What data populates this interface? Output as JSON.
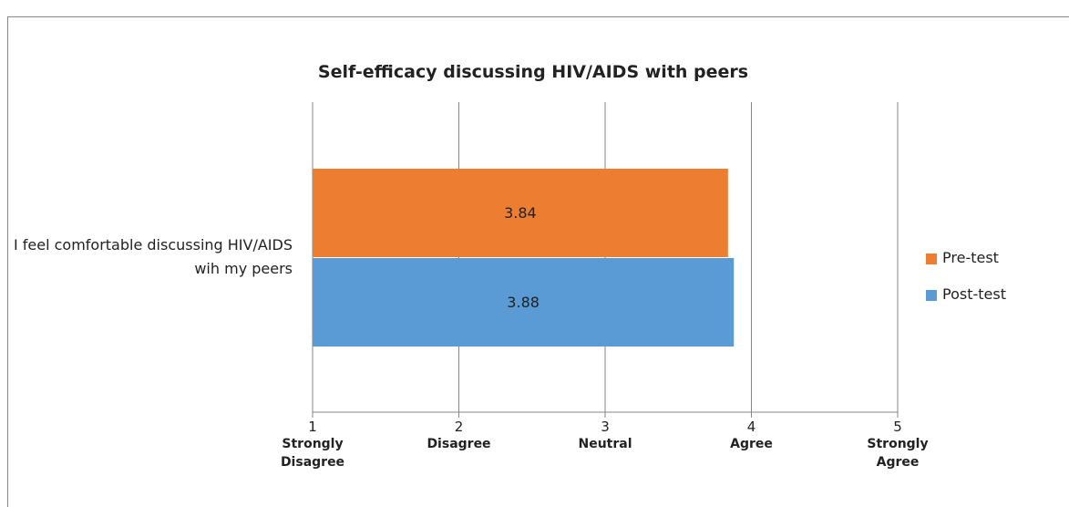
{
  "chart_data": {
    "type": "barh",
    "title": "Self-efficacy discussing HIV/AIDS with peers",
    "categories": [
      "I feel comfortable discussing HIV/AIDS wih my peers"
    ],
    "series": [
      {
        "name": "Pre-test",
        "color": "#ed7d31",
        "values": [
          3.84
        ]
      },
      {
        "name": "Post-test",
        "color": "#5b9bd5",
        "values": [
          3.88
        ]
      }
    ],
    "xlim": [
      1,
      5
    ],
    "xticks": [
      1,
      2,
      3,
      4,
      5
    ],
    "xtick_descriptions": [
      "Strongly Disagree",
      "Disagree",
      "Neutral",
      "Agree",
      "Strongly Agree"
    ],
    "grid": true,
    "legend": "right"
  }
}
